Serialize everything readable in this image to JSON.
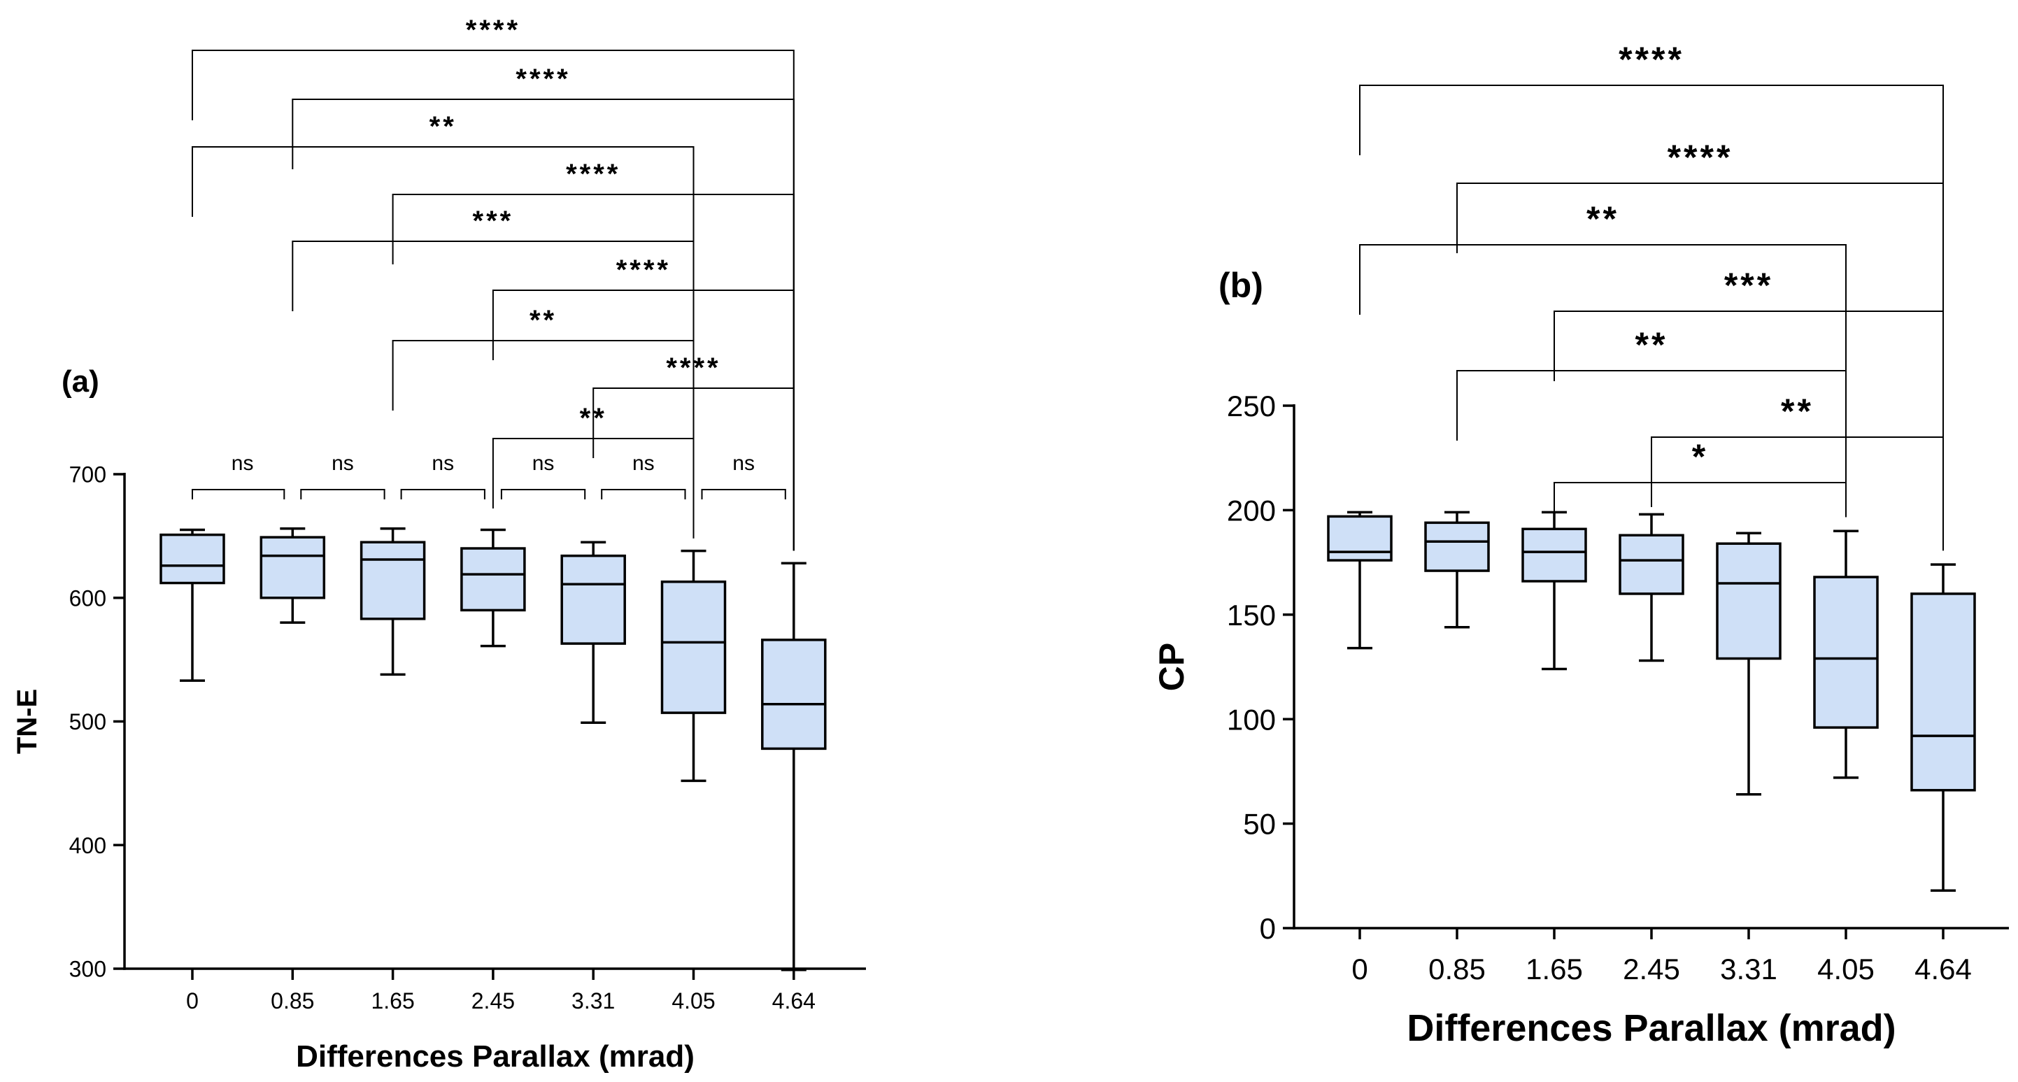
{
  "chart_data": [
    {
      "type": "box",
      "panel_label": "(a)",
      "xlabel": "Differences Parallax (mrad)",
      "ylabel": "TN-E",
      "categories": [
        "0",
        "0.85",
        "1.65",
        "2.45",
        "3.31",
        "4.05",
        "4.64"
      ],
      "ylim": [
        300,
        700
      ],
      "yticks": [
        300,
        400,
        500,
        600,
        700
      ],
      "box_fill": "#cfe0f7",
      "boxes": [
        {
          "min": 533,
          "q1": 612,
          "median": 626,
          "q3": 651,
          "max": 655
        },
        {
          "min": 580,
          "q1": 600,
          "median": 634,
          "q3": 649,
          "max": 656
        },
        {
          "min": 538,
          "q1": 583,
          "median": 631,
          "q3": 645,
          "max": 656
        },
        {
          "min": 561,
          "q1": 590,
          "median": 619,
          "q3": 640,
          "max": 655
        },
        {
          "min": 499,
          "q1": 563,
          "median": 611,
          "q3": 634,
          "max": 645
        },
        {
          "min": 452,
          "q1": 507,
          "median": 564,
          "q3": 613,
          "max": 638
        },
        {
          "min": 299,
          "q1": 478,
          "median": 514,
          "q3": 566,
          "max": 628
        }
      ],
      "comparisons": [
        {
          "from": 0,
          "to": 6,
          "label": "****"
        },
        {
          "from": 1,
          "to": 6,
          "label": "****"
        },
        {
          "from": 0,
          "to": 5,
          "label": "**"
        },
        {
          "from": 2,
          "to": 6,
          "label": "****"
        },
        {
          "from": 1,
          "to": 5,
          "label": "***"
        },
        {
          "from": 3,
          "to": 6,
          "label": "****"
        },
        {
          "from": 2,
          "to": 5,
          "label": "**"
        },
        {
          "from": 4,
          "to": 6,
          "label": "****"
        },
        {
          "from": 3,
          "to": 5,
          "label": "**"
        },
        {
          "from": 0,
          "to": 1,
          "label": "ns"
        },
        {
          "from": 1,
          "to": 2,
          "label": "ns"
        },
        {
          "from": 2,
          "to": 3,
          "label": "ns"
        },
        {
          "from": 3,
          "to": 4,
          "label": "ns"
        },
        {
          "from": 4,
          "to": 5,
          "label": "ns"
        },
        {
          "from": 5,
          "to": 6,
          "label": "ns"
        }
      ]
    },
    {
      "type": "box",
      "panel_label": "(b)",
      "xlabel": "Differences Parallax (mrad)",
      "ylabel": "CP",
      "categories": [
        "0",
        "0.85",
        "1.65",
        "2.45",
        "3.31",
        "4.05",
        "4.64"
      ],
      "ylim": [
        0,
        250
      ],
      "yticks": [
        0,
        50,
        100,
        150,
        200,
        250
      ],
      "box_fill": "#cfe0f7",
      "boxes": [
        {
          "min": 134,
          "q1": 176,
          "median": 180,
          "q3": 197,
          "max": 199
        },
        {
          "min": 144,
          "q1": 171,
          "median": 185,
          "q3": 194,
          "max": 199
        },
        {
          "min": 124,
          "q1": 166,
          "median": 180,
          "q3": 191,
          "max": 199
        },
        {
          "min": 128,
          "q1": 160,
          "median": 176,
          "q3": 188,
          "max": 198
        },
        {
          "min": 64,
          "q1": 129,
          "median": 165,
          "q3": 184,
          "max": 189
        },
        {
          "min": 72,
          "q1": 96,
          "median": 129,
          "q3": 168,
          "max": 190
        },
        {
          "min": 18,
          "q1": 66,
          "median": 92,
          "q3": 160,
          "max": 174
        }
      ],
      "comparisons": [
        {
          "from": 0,
          "to": 6,
          "label": "****"
        },
        {
          "from": 1,
          "to": 6,
          "label": "****"
        },
        {
          "from": 0,
          "to": 5,
          "label": "**"
        },
        {
          "from": 2,
          "to": 6,
          "label": "***"
        },
        {
          "from": 1,
          "to": 5,
          "label": "**"
        },
        {
          "from": 3,
          "to": 6,
          "label": "**"
        },
        {
          "from": 2,
          "to": 5,
          "label": "*"
        }
      ]
    }
  ]
}
